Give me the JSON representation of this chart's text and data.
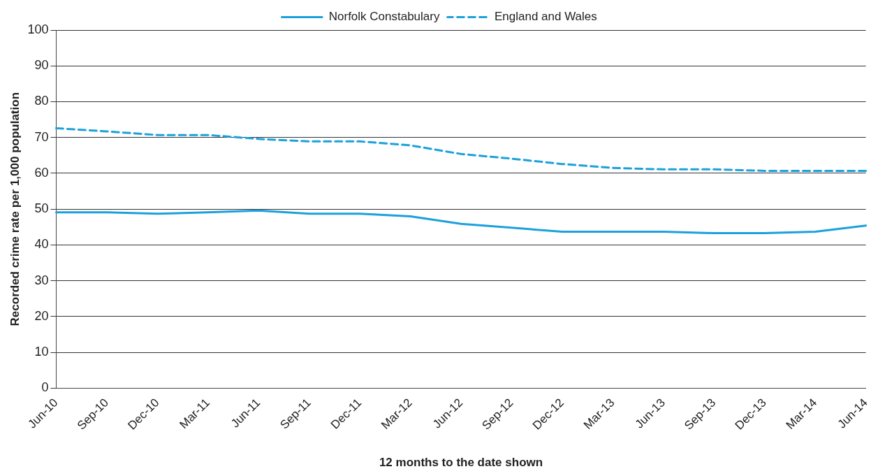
{
  "chart_data": {
    "type": "line",
    "xlabel": "12 months to the date shown",
    "ylabel": "Recorded crime rate per 1,000 population",
    "categories": [
      "Jun-10",
      "Sep-10",
      "Dec-10",
      "Mar-11",
      "Jun-11",
      "Sep-11",
      "Dec-11",
      "Mar-12",
      "Jun-12",
      "Sep-12",
      "Dec-12",
      "Mar-13",
      "Jun-13",
      "Sep-13",
      "Dec-13",
      "Mar-14",
      "Jun-14"
    ],
    "series": [
      {
        "name": "Norfolk Constabulary",
        "color": "#1ba1dc",
        "line_style": "solid",
        "values": [
          49.1,
          49.1,
          48.7,
          49.1,
          49.6,
          48.7,
          48.7,
          48.0,
          45.9,
          44.8,
          43.7,
          43.7,
          43.7,
          43.3,
          43.3,
          43.7,
          45.4
        ]
      },
      {
        "name": "England and Wales",
        "color": "#1ba1dc",
        "line_style": "dashed",
        "values": [
          72.6,
          71.7,
          70.7,
          70.7,
          69.6,
          68.9,
          68.9,
          67.8,
          65.4,
          64.1,
          62.6,
          61.5,
          61.1,
          61.1,
          60.7,
          60.7,
          60.7
        ]
      }
    ],
    "ylim": [
      0,
      100
    ],
    "yticks": [
      0,
      10,
      20,
      30,
      40,
      50,
      60,
      70,
      80,
      90,
      100
    ],
    "grid": "y",
    "legend": "top",
    "marker": "none"
  }
}
